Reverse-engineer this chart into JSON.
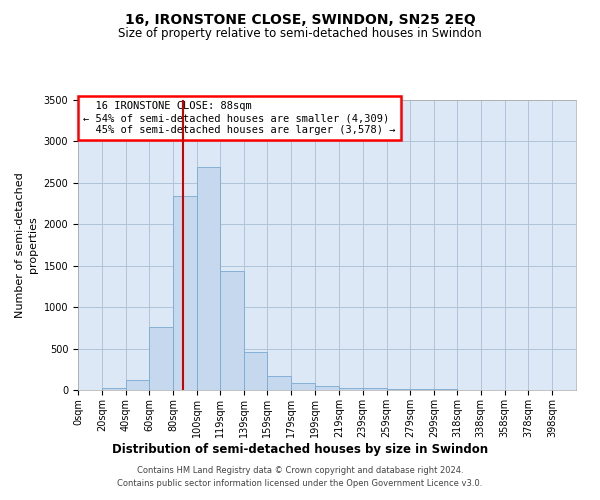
{
  "title": "16, IRONSTONE CLOSE, SWINDON, SN25 2EQ",
  "subtitle": "Size of property relative to semi-detached houses in Swindon",
  "xlabel": "Distribution of semi-detached houses by size in Swindon",
  "ylabel": "Number of semi-detached\nproperties",
  "footer": "Contains HM Land Registry data © Crown copyright and database right 2024.\nContains public sector information licensed under the Open Government Licence v3.0.",
  "property_label": "16 IRONSTONE CLOSE: 88sqm",
  "smaller_pct": "54%",
  "smaller_count": "4,309",
  "larger_pct": "45%",
  "larger_count": "3,578",
  "property_size": 88,
  "bin_labels": [
    "0sqm",
    "20sqm",
    "40sqm",
    "60sqm",
    "80sqm",
    "100sqm",
    "119sqm",
    "139sqm",
    "159sqm",
    "179sqm",
    "199sqm",
    "219sqm",
    "239sqm",
    "259sqm",
    "279sqm",
    "299sqm",
    "318sqm",
    "338sqm",
    "358sqm",
    "378sqm",
    "398sqm"
  ],
  "bin_left_edges": [
    0,
    20,
    40,
    60,
    80,
    100,
    119,
    139,
    159,
    179,
    199,
    219,
    239,
    259,
    279,
    299,
    318,
    338,
    358,
    378,
    398
  ],
  "bar_heights": [
    5,
    30,
    120,
    760,
    2340,
    2690,
    1440,
    460,
    170,
    80,
    50,
    30,
    20,
    15,
    10,
    8,
    5,
    4,
    3,
    2,
    1
  ],
  "bar_color": "#c5d8ee",
  "bar_edge_color": "#7aaad0",
  "vline_color": "#cc0000",
  "ylim": [
    0,
    3500
  ],
  "yticks": [
    0,
    500,
    1000,
    1500,
    2000,
    2500,
    3000,
    3500
  ],
  "grid_color": "#b0c4d8",
  "bg_color": "#dce8f5",
  "title_fontsize": 10,
  "subtitle_fontsize": 8.5,
  "ylabel_fontsize": 8,
  "xlabel_fontsize": 8.5,
  "tick_fontsize": 7,
  "footer_fontsize": 6,
  "ann_fontsize": 7.5
}
